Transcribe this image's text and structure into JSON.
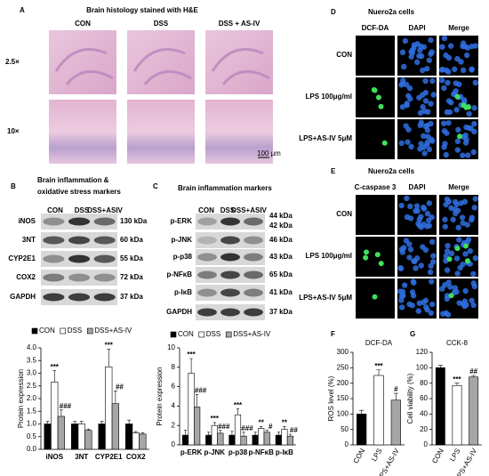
{
  "figure": {
    "A": {
      "letter": "A",
      "title": "Brain histology stained with H&E",
      "columns": [
        "CON",
        "DSS",
        "DSS + AS-IV"
      ],
      "rows": [
        "2.5×",
        "10×"
      ],
      "scale_bar": "100 μm"
    },
    "B": {
      "letter": "B",
      "title": [
        "Brain inflammation &",
        "oxidative stress markers"
      ],
      "columns": [
        "CON",
        "DSS",
        "DSS+ASIV"
      ],
      "proteins": [
        "iNOS",
        "3NT",
        "CYP2E1",
        "COX2",
        "GAPDH"
      ],
      "sizes": [
        "130 kDa",
        "60 kDa",
        "55 kDa",
        "72 kDa",
        "37 kDa"
      ]
    },
    "C": {
      "letter": "C",
      "title": "Brain inflammation markers",
      "columns": [
        "CON",
        "DSS",
        "DSS+ASIV"
      ],
      "proteins": [
        "p-ERK",
        "p-JNK",
        "p-p38",
        "p-NFκB",
        "p-IκB",
        "GAPDH"
      ],
      "erk_sizes": [
        "44 kDa",
        "42 kDa"
      ],
      "sizes": [
        "46 kDa",
        "43 kDa",
        "65 kDa",
        "41 kDa",
        "37 kDa"
      ]
    },
    "D": {
      "letter": "D",
      "title": "Nuero2a cells",
      "columns": [
        "DCF-DA",
        "DAPI",
        "Merge"
      ],
      "rows": [
        "CON",
        "LPS 100μg/ml",
        "LPS+AS-IV 5μM"
      ]
    },
    "E": {
      "letter": "E",
      "title": "Nuero2a cells",
      "columns": [
        "C-caspase 3",
        "DAPI",
        "Merge"
      ],
      "rows": [
        "CON",
        "LPS 100μg/ml",
        "LPS+AS-IV 5μM"
      ]
    },
    "F": {
      "letter": "F"
    },
    "G": {
      "letter": "G"
    }
  },
  "chart_data": [
    {
      "type": "bar",
      "ylabel": "Protein expression",
      "categories": [
        "iNOS",
        "3NT",
        "CYP2E1",
        "COX2"
      ],
      "ylim": [
        0,
        4
      ],
      "yticks": [
        {
          "value": 0,
          "label": "0.0"
        },
        0.5,
        {
          "value": 1,
          "label": "1.0"
        },
        1.5,
        {
          "value": 2,
          "label": "2.0"
        },
        2.5,
        {
          "value": 3,
          "label": "3.0"
        },
        3.5,
        {
          "value": 4,
          "label": "4.0"
        }
      ],
      "series": [
        {
          "name": "CON",
          "color": "#000000",
          "values": [
            1,
            1,
            1,
            1
          ],
          "errors": [
            0.1,
            0.1,
            0.1,
            0.15
          ]
        },
        {
          "name": "DSS",
          "color": "#ffffff",
          "values": [
            2.65,
            1,
            3.25,
            0.65
          ],
          "errors": [
            0.45,
            0.1,
            0.7,
            0.05
          ],
          "significance": [
            "***",
            null,
            "***",
            null
          ]
        },
        {
          "name": "DSS+AS-IV",
          "color": "#a6a6a6",
          "values": [
            1.3,
            0.75,
            1.8,
            0.6
          ],
          "errors": [
            0.25,
            0.05,
            0.5,
            0.05
          ],
          "significance": [
            "###",
            null,
            "##",
            null
          ]
        }
      ]
    },
    {
      "type": "bar",
      "ylabel": "Protein expression",
      "categories": [
        "p-ERK",
        "p-JNK",
        "p-p38",
        "p-NFκB",
        "p-IκB"
      ],
      "ylim": [
        0,
        10
      ],
      "yticks": [
        0,
        2,
        4,
        6,
        8,
        10
      ],
      "series": [
        {
          "name": "CON",
          "color": "#000000",
          "values": [
            1,
            1,
            1,
            1,
            1
          ],
          "errors": [
            0.5,
            0.3,
            0.4,
            0.3,
            0.3
          ]
        },
        {
          "name": "DSS",
          "color": "#ffffff",
          "values": [
            7.4,
            2,
            3.1,
            1.7,
            1.6
          ],
          "errors": [
            1.5,
            0.3,
            0.6,
            0.2,
            0.3
          ],
          "significance": [
            "***",
            "***",
            "***",
            "**",
            "**"
          ]
        },
        {
          "name": "DSS+AS-IV",
          "color": "#a6a6a6",
          "values": [
            3.9,
            1.2,
            0.9,
            1.3,
            0.9
          ],
          "errors": [
            1.3,
            0.3,
            0.4,
            0.2,
            0.2
          ],
          "significance": [
            "###",
            "###",
            "###",
            "#",
            "##"
          ]
        }
      ]
    },
    {
      "type": "bar",
      "title": "DCF-DA",
      "ylabel": "ROS level (%)",
      "categories": [
        "CON",
        "LPS",
        "LPS+AS-IV"
      ],
      "ylim": [
        0,
        300
      ],
      "yticks": [
        0,
        50,
        100,
        150,
        200,
        250,
        300
      ],
      "series": [
        {
          "colors": [
            "#000000",
            "#ffffff",
            "#a6a6a6"
          ],
          "values": [
            100,
            225,
            145
          ],
          "errors": [
            12,
            18,
            22
          ],
          "significance": [
            null,
            "***",
            "#"
          ]
        }
      ]
    },
    {
      "type": "bar",
      "title": "CCK-8",
      "ylabel": "Cell viability (%)",
      "categories": [
        "CON",
        "LPS",
        "LPS+AS-IV"
      ],
      "ylim": [
        0,
        120
      ],
      "yticks": [
        0,
        20,
        40,
        60,
        80,
        100,
        120
      ],
      "series": [
        {
          "colors": [
            "#000000",
            "#ffffff",
            "#a6a6a6"
          ],
          "values": [
            100,
            77,
            88
          ],
          "errors": [
            3,
            3,
            2
          ],
          "significance": [
            null,
            "***",
            "##"
          ]
        }
      ]
    }
  ]
}
